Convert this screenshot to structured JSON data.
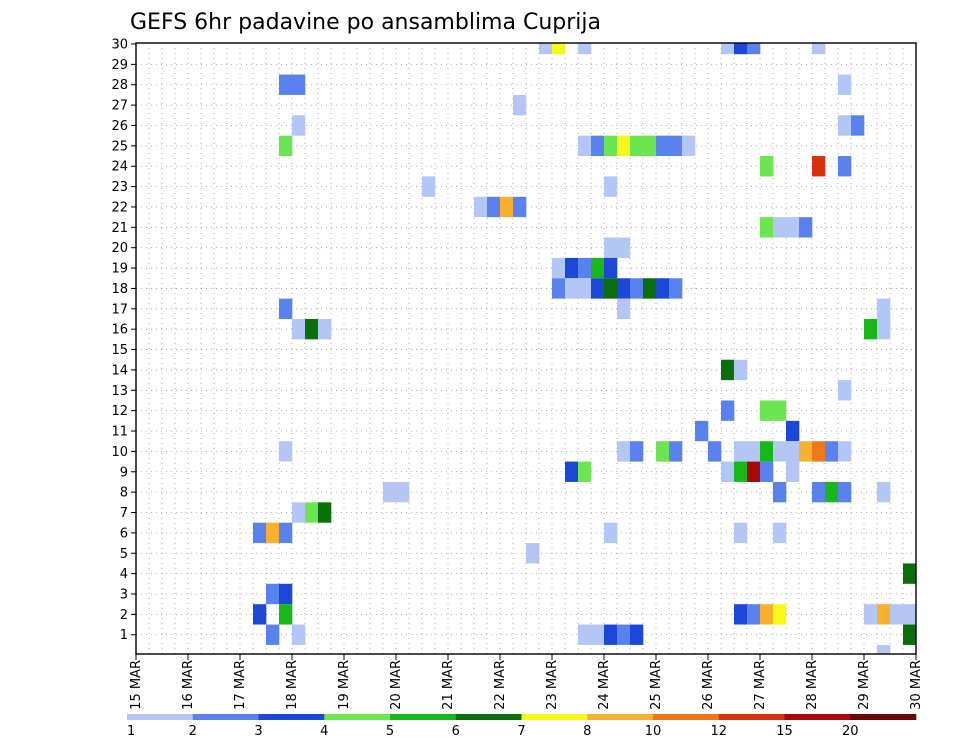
{
  "chart_data": {
    "type": "heatmap",
    "title": "GEFS 6hr padavine po ansamblima Cuprija",
    "xlabel": "",
    "ylabel": "",
    "x_ticks": [
      "15 MAR",
      "16 MAR",
      "17 MAR",
      "18 MAR",
      "19 MAR",
      "20 MAR",
      "21 MAR",
      "22 MAR",
      "23 MAR",
      "24 MAR",
      "25 MAR",
      "26 MAR",
      "27 MAR",
      "28 MAR",
      "29 MAR",
      "30 MAR"
    ],
    "y_ticks": [
      "1",
      "2",
      "3",
      "4",
      "5",
      "6",
      "7",
      "8",
      "9",
      "10",
      "11",
      "12",
      "13",
      "14",
      "15",
      "16",
      "17",
      "18",
      "19",
      "20",
      "21",
      "22",
      "23",
      "24",
      "25",
      "26",
      "27",
      "28",
      "29",
      "30"
    ],
    "time_step_hours": 6,
    "colorbar": {
      "thresholds": [
        "1",
        "2",
        "3",
        "4",
        "5",
        "6",
        "7",
        "8",
        "10",
        "12",
        "15",
        "20"
      ],
      "colors": [
        "#b4c6f6",
        "#5a82ee",
        "#1c48d8",
        "#6ce650",
        "#18b818",
        "#0a6e0a",
        "#f8f818",
        "#f8b030",
        "#f07818",
        "#d83010",
        "#a80808",
        "#6a0808"
      ]
    },
    "cells": [
      {
        "member": 30,
        "step": 32,
        "cat": 1
      },
      {
        "member": 30,
        "step": 33,
        "cat": 7
      },
      {
        "member": 30,
        "step": 35,
        "cat": 1
      },
      {
        "member": 30,
        "step": 46,
        "cat": 1
      },
      {
        "member": 30,
        "step": 47,
        "cat": 3
      },
      {
        "member": 30,
        "step": 48,
        "cat": 2
      },
      {
        "member": 30,
        "step": 53,
        "cat": 1
      },
      {
        "member": 28,
        "step": 12,
        "cat": 2
      },
      {
        "member": 28,
        "step": 13,
        "cat": 2
      },
      {
        "member": 28,
        "step": 55,
        "cat": 1
      },
      {
        "member": 27,
        "step": 30,
        "cat": 1
      },
      {
        "member": 26,
        "step": 13,
        "cat": 1
      },
      {
        "member": 26,
        "step": 55,
        "cat": 1
      },
      {
        "member": 26,
        "step": 56,
        "cat": 2
      },
      {
        "member": 25,
        "step": 12,
        "cat": 4
      },
      {
        "member": 25,
        "step": 35,
        "cat": 1
      },
      {
        "member": 25,
        "step": 36,
        "cat": 2
      },
      {
        "member": 25,
        "step": 37,
        "cat": 4
      },
      {
        "member": 25,
        "step": 38,
        "cat": 7
      },
      {
        "member": 25,
        "step": 39,
        "cat": 4
      },
      {
        "member": 25,
        "step": 40,
        "cat": 4
      },
      {
        "member": 25,
        "step": 41,
        "cat": 2
      },
      {
        "member": 25,
        "step": 42,
        "cat": 2
      },
      {
        "member": 25,
        "step": 43,
        "cat": 1
      },
      {
        "member": 24,
        "step": 49,
        "cat": 4
      },
      {
        "member": 24,
        "step": 53,
        "cat": 10
      },
      {
        "member": 24,
        "step": 55,
        "cat": 2
      },
      {
        "member": 23,
        "step": 23,
        "cat": 1
      },
      {
        "member": 23,
        "step": 37,
        "cat": 1
      },
      {
        "member": 22,
        "step": 27,
        "cat": 1
      },
      {
        "member": 22,
        "step": 28,
        "cat": 2
      },
      {
        "member": 22,
        "step": 29,
        "cat": 8
      },
      {
        "member": 22,
        "step": 30,
        "cat": 2
      },
      {
        "member": 21,
        "step": 49,
        "cat": 4
      },
      {
        "member": 21,
        "step": 50,
        "cat": 1
      },
      {
        "member": 21,
        "step": 51,
        "cat": 1
      },
      {
        "member": 21,
        "step": 52,
        "cat": 2
      },
      {
        "member": 20,
        "step": 37,
        "cat": 1
      },
      {
        "member": 20,
        "step": 38,
        "cat": 1
      },
      {
        "member": 19,
        "step": 33,
        "cat": 1
      },
      {
        "member": 19,
        "step": 34,
        "cat": 3
      },
      {
        "member": 19,
        "step": 35,
        "cat": 2
      },
      {
        "member": 19,
        "step": 36,
        "cat": 5
      },
      {
        "member": 19,
        "step": 37,
        "cat": 3
      },
      {
        "member": 18,
        "step": 33,
        "cat": 2
      },
      {
        "member": 18,
        "step": 34,
        "cat": 1
      },
      {
        "member": 18,
        "step": 35,
        "cat": 1
      },
      {
        "member": 18,
        "step": 36,
        "cat": 3
      },
      {
        "member": 18,
        "step": 37,
        "cat": 6
      },
      {
        "member": 18,
        "step": 38,
        "cat": 3
      },
      {
        "member": 18,
        "step": 39,
        "cat": 2
      },
      {
        "member": 18,
        "step": 40,
        "cat": 6
      },
      {
        "member": 18,
        "step": 41,
        "cat": 3
      },
      {
        "member": 18,
        "step": 42,
        "cat": 2
      },
      {
        "member": 17,
        "step": 12,
        "cat": 2
      },
      {
        "member": 17,
        "step": 38,
        "cat": 1
      },
      {
        "member": 17,
        "step": 58,
        "cat": 1
      },
      {
        "member": 16,
        "step": 13,
        "cat": 1
      },
      {
        "member": 16,
        "step": 14,
        "cat": 6
      },
      {
        "member": 16,
        "step": 15,
        "cat": 1
      },
      {
        "member": 16,
        "step": 57,
        "cat": 5
      },
      {
        "member": 16,
        "step": 58,
        "cat": 1
      },
      {
        "member": 14,
        "step": 46,
        "cat": 6
      },
      {
        "member": 14,
        "step": 47,
        "cat": 1
      },
      {
        "member": 13,
        "step": 55,
        "cat": 1
      },
      {
        "member": 12,
        "step": 46,
        "cat": 2
      },
      {
        "member": 12,
        "step": 49,
        "cat": 4
      },
      {
        "member": 12,
        "step": 50,
        "cat": 4
      },
      {
        "member": 11,
        "step": 44,
        "cat": 2
      },
      {
        "member": 11,
        "step": 51,
        "cat": 3
      },
      {
        "member": 10,
        "step": 12,
        "cat": 1
      },
      {
        "member": 10,
        "step": 38,
        "cat": 1
      },
      {
        "member": 10,
        "step": 39,
        "cat": 2
      },
      {
        "member": 10,
        "step": 41,
        "cat": 4
      },
      {
        "member": 10,
        "step": 42,
        "cat": 2
      },
      {
        "member": 10,
        "step": 45,
        "cat": 2
      },
      {
        "member": 10,
        "step": 47,
        "cat": 1
      },
      {
        "member": 10,
        "step": 48,
        "cat": 1
      },
      {
        "member": 10,
        "step": 49,
        "cat": 5
      },
      {
        "member": 10,
        "step": 50,
        "cat": 1
      },
      {
        "member": 10,
        "step": 51,
        "cat": 1
      },
      {
        "member": 10,
        "step": 52,
        "cat": 8
      },
      {
        "member": 10,
        "step": 53,
        "cat": 9
      },
      {
        "member": 10,
        "step": 54,
        "cat": 2
      },
      {
        "member": 10,
        "step": 55,
        "cat": 1
      },
      {
        "member": 9,
        "step": 34,
        "cat": 3
      },
      {
        "member": 9,
        "step": 35,
        "cat": 4
      },
      {
        "member": 9,
        "step": 46,
        "cat": 1
      },
      {
        "member": 9,
        "step": 47,
        "cat": 5
      },
      {
        "member": 9,
        "step": 48,
        "cat": 11
      },
      {
        "member": 9,
        "step": 49,
        "cat": 2
      },
      {
        "member": 9,
        "step": 51,
        "cat": 1
      },
      {
        "member": 8,
        "step": 20,
        "cat": 1
      },
      {
        "member": 8,
        "step": 21,
        "cat": 1
      },
      {
        "member": 8,
        "step": 50,
        "cat": 2
      },
      {
        "member": 8,
        "step": 53,
        "cat": 2
      },
      {
        "member": 8,
        "step": 54,
        "cat": 5
      },
      {
        "member": 8,
        "step": 55,
        "cat": 2
      },
      {
        "member": 8,
        "step": 58,
        "cat": 1
      },
      {
        "member": 7,
        "step": 13,
        "cat": 1
      },
      {
        "member": 7,
        "step": 14,
        "cat": 4
      },
      {
        "member": 7,
        "step": 15,
        "cat": 6
      },
      {
        "member": 6,
        "step": 10,
        "cat": 2
      },
      {
        "member": 6,
        "step": 11,
        "cat": 8
      },
      {
        "member": 6,
        "step": 12,
        "cat": 2
      },
      {
        "member": 6,
        "step": 37,
        "cat": 1
      },
      {
        "member": 6,
        "step": 47,
        "cat": 1
      },
      {
        "member": 6,
        "step": 50,
        "cat": 1
      },
      {
        "member": 5,
        "step": 31,
        "cat": 1
      },
      {
        "member": 4,
        "step": 60,
        "cat": 6
      },
      {
        "member": 3,
        "step": 11,
        "cat": 2
      },
      {
        "member": 3,
        "step": 12,
        "cat": 3
      },
      {
        "member": 2,
        "step": 10,
        "cat": 3
      },
      {
        "member": 2,
        "step": 12,
        "cat": 5
      },
      {
        "member": 2,
        "step": 47,
        "cat": 3
      },
      {
        "member": 2,
        "step": 48,
        "cat": 2
      },
      {
        "member": 2,
        "step": 49,
        "cat": 8
      },
      {
        "member": 2,
        "step": 50,
        "cat": 7
      },
      {
        "member": 2,
        "step": 57,
        "cat": 1
      },
      {
        "member": 2,
        "step": 58,
        "cat": 8
      },
      {
        "member": 2,
        "step": 59,
        "cat": 1
      },
      {
        "member": 2,
        "step": 60,
        "cat": 1
      },
      {
        "member": 1,
        "step": 11,
        "cat": 2
      },
      {
        "member": 1,
        "step": 13,
        "cat": 1
      },
      {
        "member": 1,
        "step": 35,
        "cat": 1
      },
      {
        "member": 1,
        "step": 36,
        "cat": 1
      },
      {
        "member": 1,
        "step": 37,
        "cat": 3
      },
      {
        "member": 1,
        "step": 38,
        "cat": 2
      },
      {
        "member": 1,
        "step": 39,
        "cat": 3
      },
      {
        "member": 1,
        "step": 60,
        "cat": 6
      },
      {
        "member": 0,
        "step": 58,
        "cat": 1
      }
    ],
    "grid": true,
    "legend": "bottom colorbar"
  }
}
